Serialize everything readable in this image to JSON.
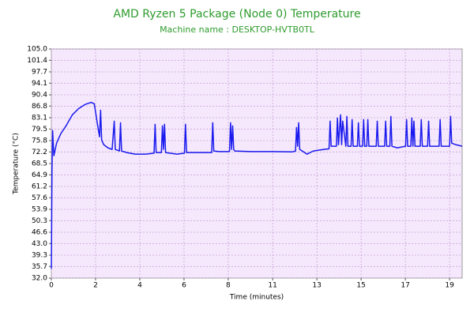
{
  "chart_data": {
    "type": "line",
    "title": "AMD Ryzen 5 Package (Node 0) Temperature",
    "subtitle": "Machine name : DESKTOP-HVTB0TL",
    "x_label": "Time (minutes)",
    "y_label": "Temperature (°C)",
    "color": "#1a1aee",
    "grid": true,
    "xlim": [
      0,
      19.6
    ],
    "ylim": [
      32,
      105
    ],
    "xticks": [
      0,
      {
        "value": 2.11,
        "label": "2"
      },
      {
        "value": 4.22,
        "label": "4"
      },
      {
        "value": 6.33,
        "label": "6"
      },
      {
        "value": 8.44,
        "label": "8"
      },
      {
        "value": 10.56,
        "label": "11"
      },
      {
        "value": 12.67,
        "label": "13"
      },
      {
        "value": 14.78,
        "label": "15"
      },
      {
        "value": 16.89,
        "label": "17"
      },
      19
    ],
    "yticks": [
      {
        "value": 32,
        "label": "32.0"
      },
      35.7,
      39.3,
      {
        "value": 43,
        "label": "43.0"
      },
      46.6,
      50.3,
      53.9,
      57.6,
      61.2,
      64.9,
      68.5,
      72.2,
      75.8,
      79.5,
      83.1,
      86.8,
      90.4,
      94.1,
      97.7,
      101.4,
      {
        "value": 105,
        "label": "105.0"
      }
    ],
    "x": [
      0,
      0.03,
      0.06,
      0.12,
      0.25,
      0.45,
      0.7,
      1.0,
      1.3,
      1.6,
      1.9,
      2.05,
      2.2,
      2.3,
      2.35,
      2.4,
      2.5,
      2.7,
      2.9,
      3.0,
      3.05,
      3.25,
      3.3,
      3.35,
      3.6,
      4.0,
      4.5,
      4.9,
      4.95,
      5.0,
      5.25,
      5.3,
      5.35,
      5.4,
      5.45,
      6.0,
      6.35,
      6.4,
      6.45,
      7.0,
      7.65,
      7.7,
      7.75,
      8.0,
      8.5,
      8.55,
      8.6,
      8.65,
      8.7,
      8.75,
      9.5,
      10.5,
      11.5,
      11.65,
      11.7,
      11.75,
      11.8,
      11.85,
      12.2,
      12.5,
      13.0,
      13.25,
      13.3,
      13.35,
      13.6,
      13.65,
      13.7,
      13.8,
      13.85,
      13.9,
      14.05,
      14.1,
      14.15,
      14.3,
      14.35,
      14.4,
      14.6,
      14.65,
      14.7,
      14.85,
      14.9,
      14.95,
      15.05,
      15.1,
      15.15,
      15.5,
      15.55,
      15.6,
      15.9,
      15.95,
      16.0,
      16.15,
      16.2,
      16.25,
      16.5,
      16.9,
      16.95,
      17.0,
      17.15,
      17.2,
      17.25,
      17.3,
      17.35,
      17.6,
      17.65,
      17.7,
      17.95,
      18.0,
      18.05,
      18.5,
      18.55,
      18.6,
      19.0,
      19.05,
      19.1,
      19.3,
      19.6
    ],
    "values": [
      35,
      66,
      79,
      71,
      75,
      78,
      80.5,
      84,
      86,
      87.3,
      88,
      87.5,
      81,
      77,
      85.5,
      76,
      74.5,
      73.5,
      73,
      82,
      73,
      72.5,
      81.5,
      72.5,
      72,
      71.5,
      71.5,
      71.8,
      81,
      72,
      72,
      80.5,
      73,
      81,
      72,
      71.5,
      71.8,
      81,
      72,
      72,
      72,
      81.5,
      72.5,
      72.3,
      72.3,
      81.5,
      73,
      80.5,
      73,
      72.5,
      72.3,
      72.3,
      72.2,
      72.5,
      80,
      74,
      81.5,
      73,
      71.5,
      72.5,
      73,
      73.2,
      82,
      74,
      74,
      83,
      74.5,
      84,
      74.5,
      82,
      74,
      83.5,
      74,
      74,
      82.5,
      74,
      74,
      81.5,
      74,
      74,
      82.5,
      74,
      74,
      82.5,
      74,
      74,
      82,
      74,
      74,
      82,
      74,
      74,
      83.5,
      74,
      73.5,
      74,
      82.5,
      74,
      74,
      83,
      74,
      82,
      74,
      74,
      82.5,
      74,
      74,
      82,
      74,
      74,
      82.5,
      74,
      74,
      83.5,
      75,
      74.5,
      74
    ]
  }
}
